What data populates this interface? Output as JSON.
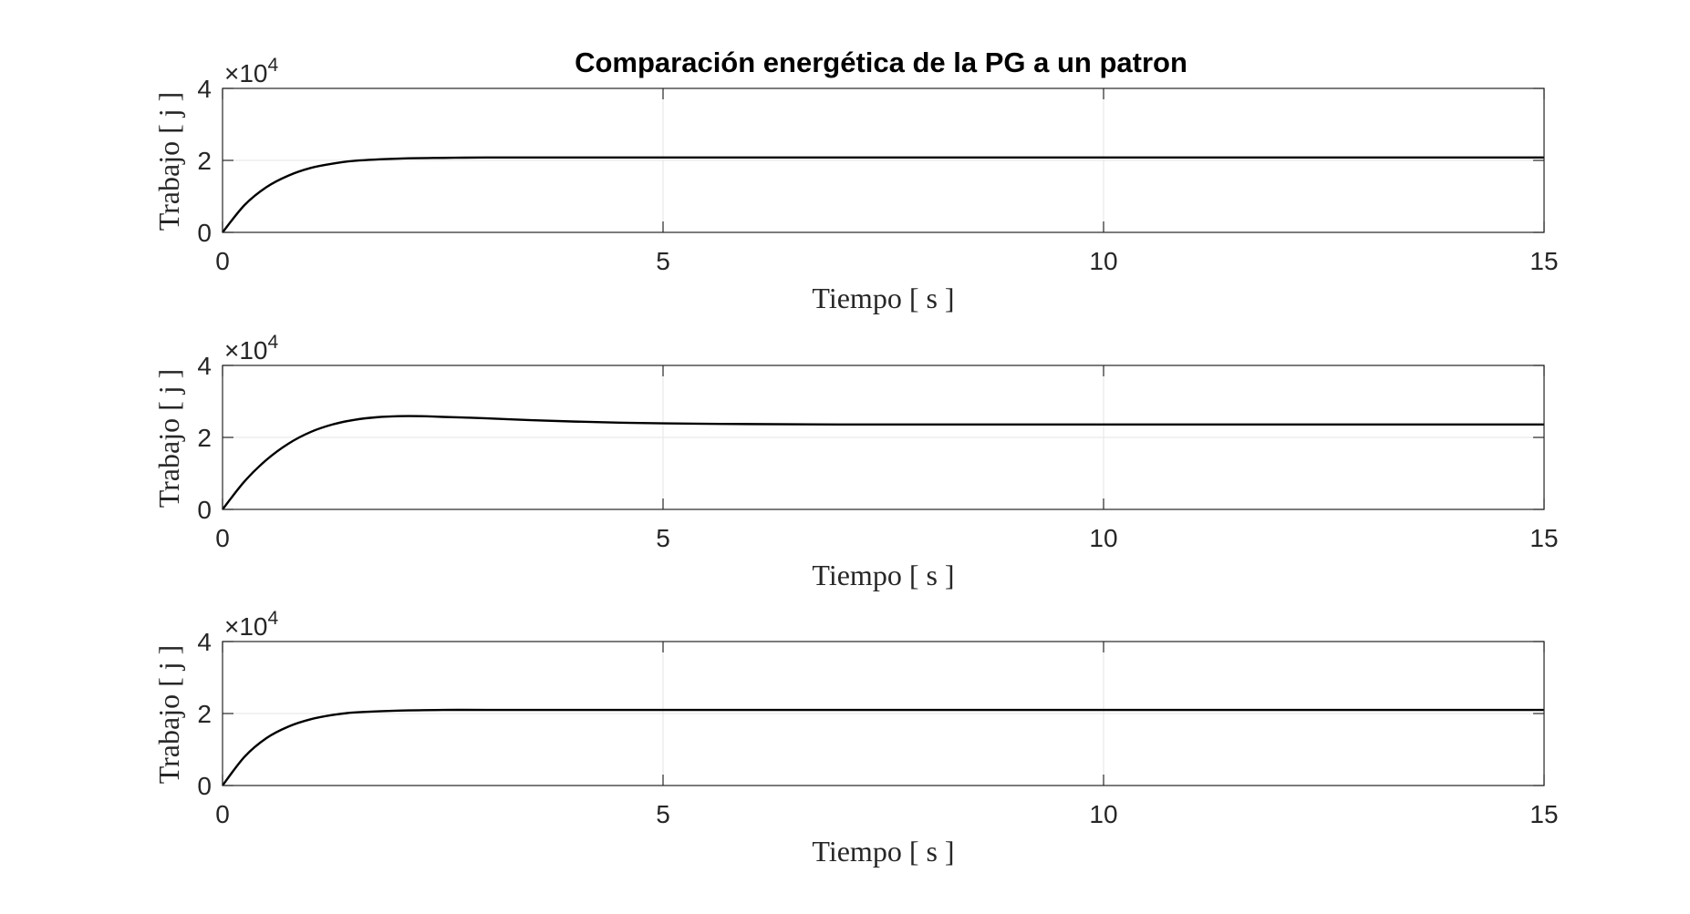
{
  "figure": {
    "title": "Comparación energética de la PG a un patron",
    "background": "#ffffff",
    "line_color": "#000000",
    "grid_color": "#e6e6e6"
  },
  "chart_data": [
    {
      "type": "line",
      "title": "Comparación energética de la PG a un patron",
      "xlabel": "Tiempo [ s ]",
      "ylabel": "Trabajo [ j ]",
      "y_exponent_label": "×10",
      "y_exponent_power": "4",
      "xlim": [
        0,
        15
      ],
      "ylim": [
        0,
        40000
      ],
      "xticks": [
        0,
        5,
        10,
        15
      ],
      "xtick_labels": [
        "0",
        "5",
        "10",
        "15"
      ],
      "yticks": [
        0,
        20000,
        40000
      ],
      "ytick_labels": [
        "0",
        "2",
        "4"
      ],
      "grid": true,
      "series": [
        {
          "x": [
            0,
            0.25,
            0.5,
            0.75,
            1,
            1.25,
            1.5,
            2,
            2.5,
            3,
            4,
            5,
            7.5,
            10,
            12.5,
            15
          ],
          "y": [
            0,
            7600,
            12600,
            15800,
            17900,
            19100,
            19900,
            20500,
            20700,
            20800,
            20800,
            20800,
            20800,
            20800,
            20800,
            20800
          ]
        }
      ]
    },
    {
      "type": "line",
      "xlabel": "Tiempo [ s ]",
      "ylabel": "Trabajo [ j ]",
      "y_exponent_label": "×10",
      "y_exponent_power": "4",
      "xlim": [
        0,
        15
      ],
      "ylim": [
        0,
        40000
      ],
      "xticks": [
        0,
        5,
        10,
        15
      ],
      "xtick_labels": [
        "0",
        "5",
        "10",
        "15"
      ],
      "yticks": [
        0,
        20000,
        40000
      ],
      "ytick_labels": [
        "0",
        "2",
        "4"
      ],
      "grid": true,
      "series": [
        {
          "x": [
            0,
            0.25,
            0.5,
            0.75,
            1,
            1.25,
            1.5,
            1.75,
            2,
            2.25,
            2.5,
            3,
            3.5,
            4,
            4.5,
            5,
            6,
            7,
            8,
            10,
            12.5,
            15
          ],
          "y": [
            0,
            7800,
            13800,
            18300,
            21500,
            23600,
            24900,
            25600,
            25900,
            25900,
            25700,
            25300,
            24800,
            24400,
            24100,
            23900,
            23700,
            23600,
            23600,
            23600,
            23600,
            23600
          ]
        }
      ]
    },
    {
      "type": "line",
      "xlabel": "Tiempo [ s ]",
      "ylabel": "Trabajo [ j ]",
      "y_exponent_label": "×10",
      "y_exponent_power": "4",
      "xlim": [
        0,
        15
      ],
      "ylim": [
        0,
        40000
      ],
      "xticks": [
        0,
        5,
        10,
        15
      ],
      "xtick_labels": [
        "0",
        "5",
        "10",
        "15"
      ],
      "yticks": [
        0,
        20000,
        40000
      ],
      "ytick_labels": [
        "0",
        "2",
        "4"
      ],
      "grid": true,
      "series": [
        {
          "x": [
            0,
            0.25,
            0.5,
            0.75,
            1,
            1.25,
            1.5,
            2,
            2.5,
            3,
            4,
            5,
            7.5,
            10,
            12.5,
            15
          ],
          "y": [
            0,
            8000,
            13200,
            16400,
            18400,
            19600,
            20300,
            20800,
            21000,
            21000,
            21000,
            21000,
            21000,
            21000,
            21000,
            21000
          ]
        }
      ]
    }
  ]
}
